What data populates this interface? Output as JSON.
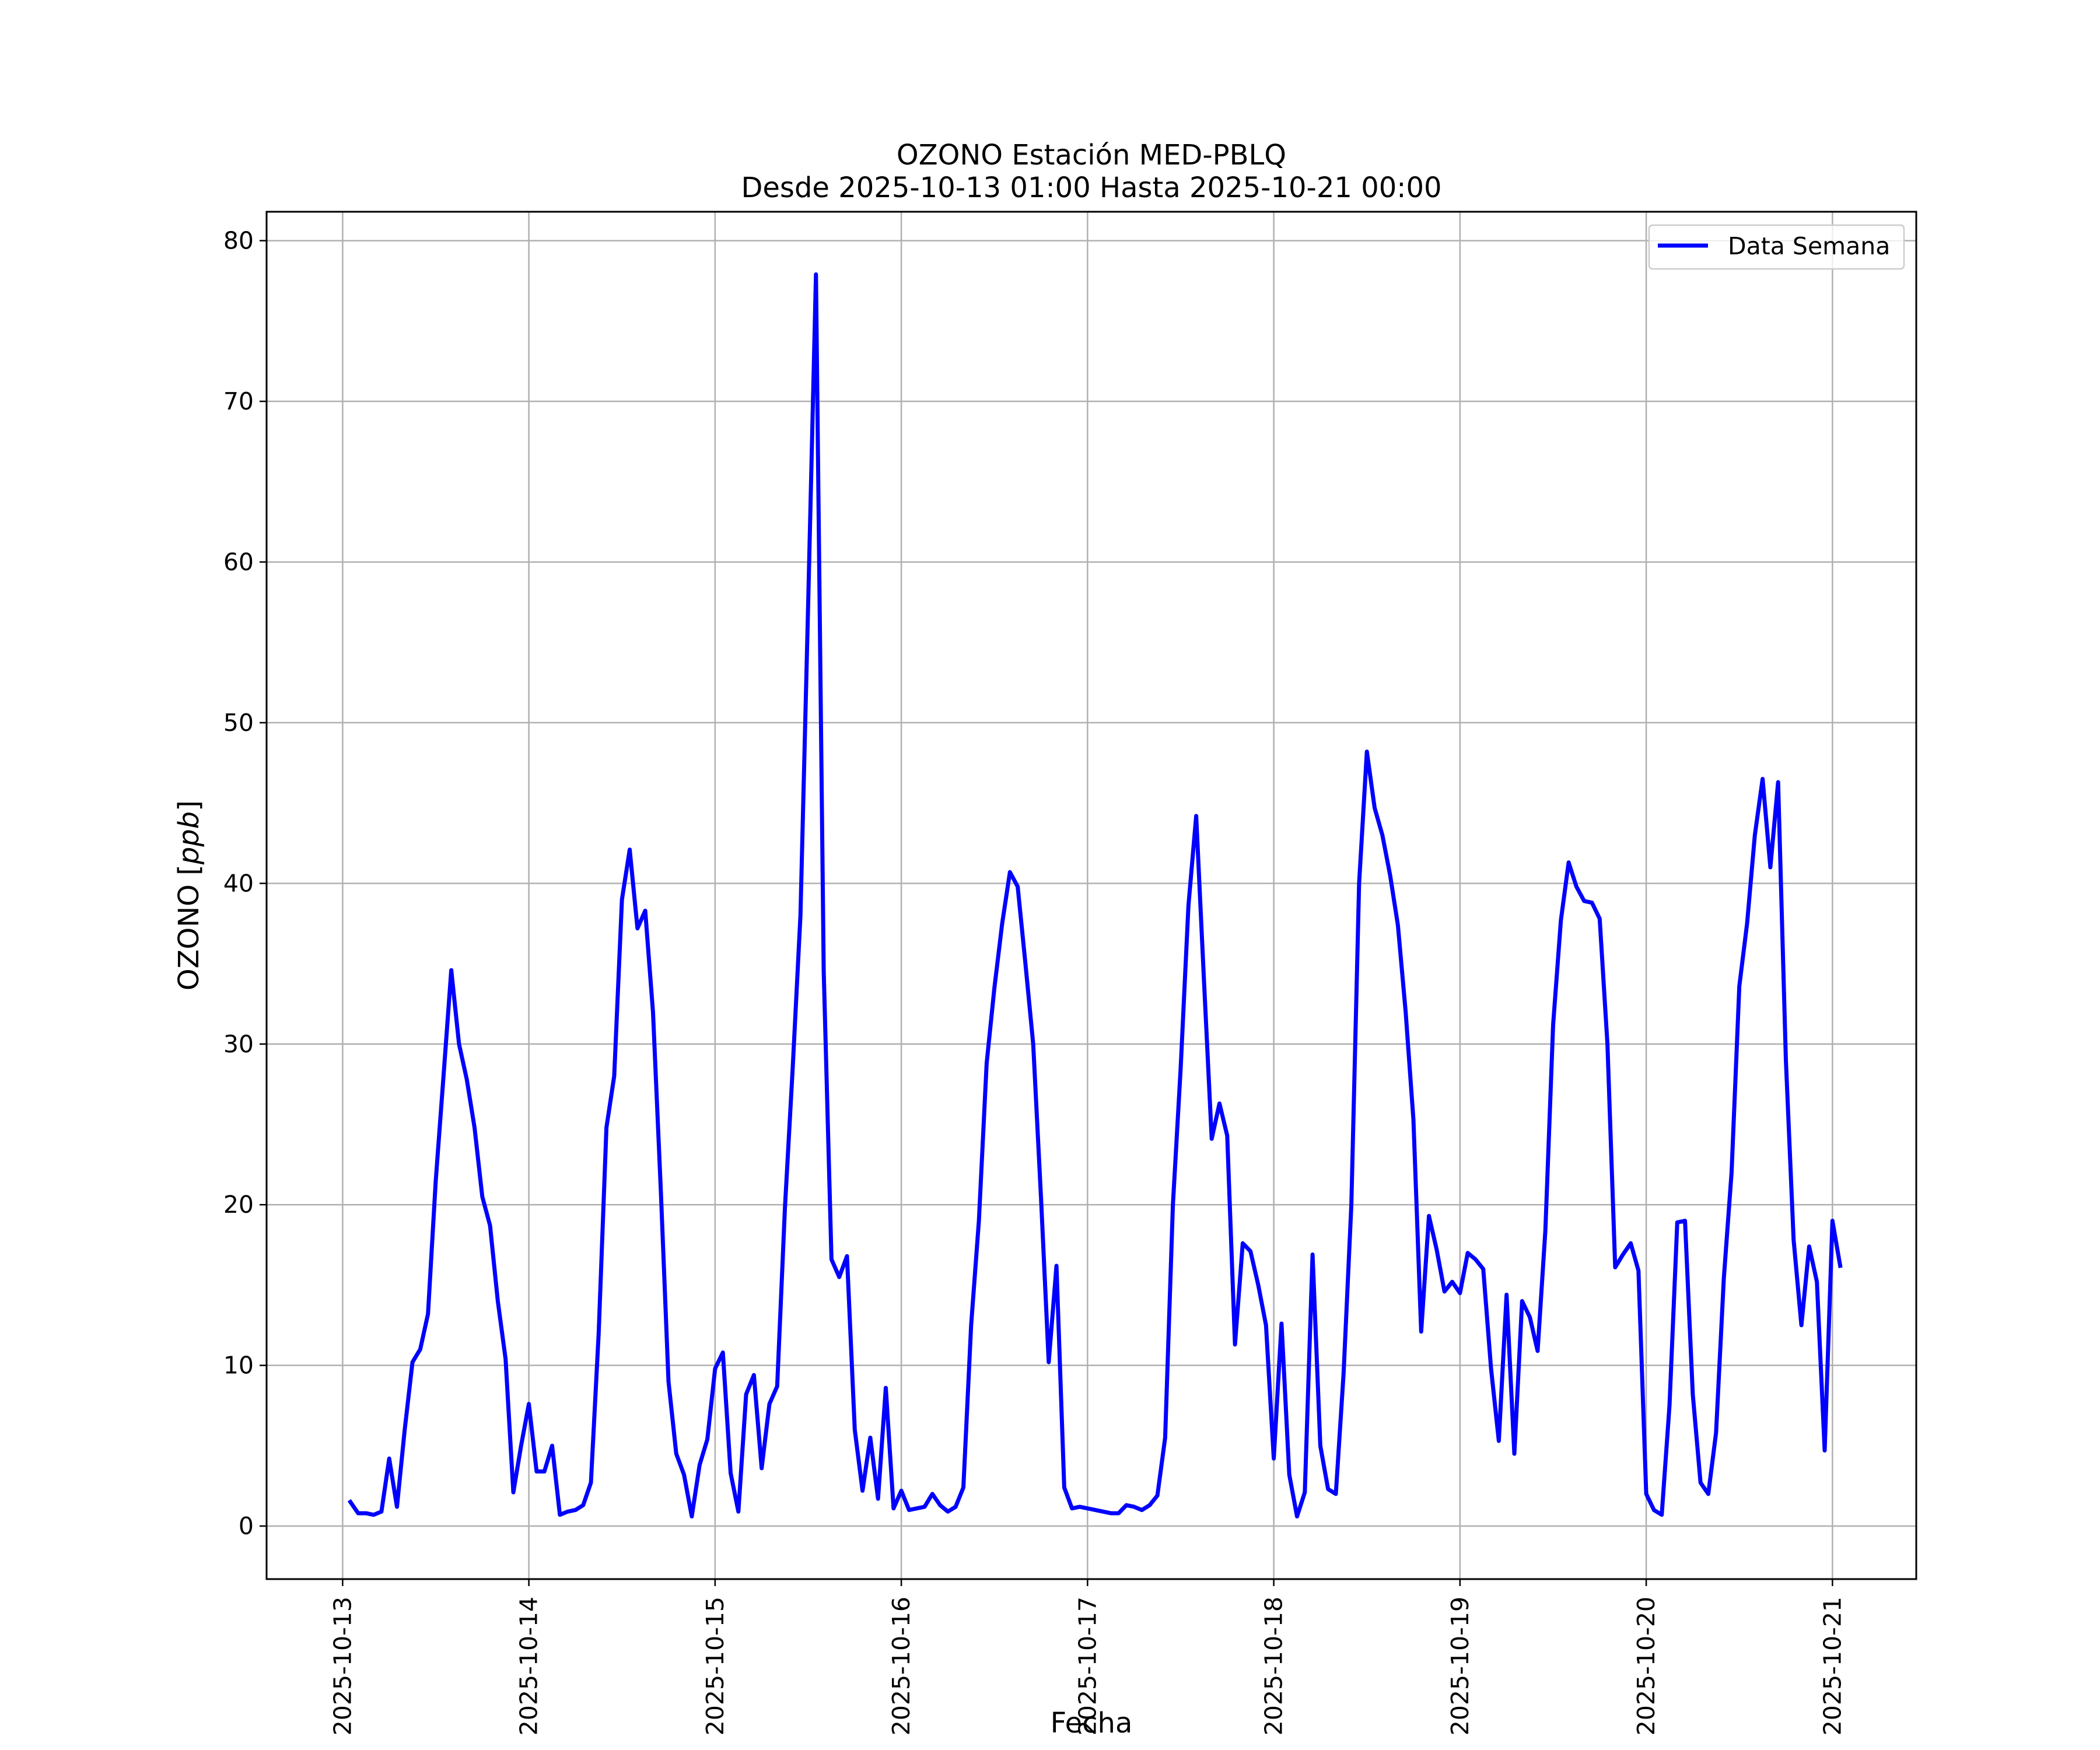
{
  "chart_data": {
    "type": "line",
    "title": "OZONO Estación MED-PBLQ",
    "subtitle": "Desde 2025-10-13 01:00 Hasta 2025-10-21 00:00",
    "xlabel": "Fecha",
    "ylabel": "OZONO [ppb]",
    "ylabel_plain": "OZONO [",
    "ylabel_unit": "ppb",
    "ylabel_close": "]",
    "ylim": [
      -3.3,
      81.8
    ],
    "xlim": [
      "2025-10-12 14:12",
      "2025-10-21 10:48"
    ],
    "yticks": [
      0,
      10,
      20,
      30,
      40,
      50,
      60,
      70,
      80
    ],
    "xticks": [
      "2025-10-13",
      "2025-10-14",
      "2025-10-15",
      "2025-10-16",
      "2025-10-17",
      "2025-10-18",
      "2025-10-19",
      "2025-10-20",
      "2025-10-21"
    ],
    "grid": true,
    "legend": {
      "position": "top-right",
      "entries": [
        "Data Semana"
      ]
    },
    "series": [
      {
        "name": "Data Semana",
        "color": "#0000ff",
        "x_start": "2025-10-13 01:00",
        "x_step": "1 hour",
        "values": [
          1.5,
          0.8,
          0.8,
          0.7,
          0.9,
          4.2,
          1.2,
          6.0,
          10.2,
          11.0,
          13.2,
          21.5,
          28.0,
          34.6,
          30.0,
          27.8,
          24.8,
          20.5,
          18.7,
          14.0,
          10.4,
          2.1,
          5.0,
          7.6,
          3.4,
          3.4,
          5.0,
          0.7,
          0.9,
          1.0,
          1.3,
          2.7,
          12.0,
          24.8,
          28.0,
          39.0,
          42.1,
          37.2,
          38.3,
          32.0,
          21.0,
          9.0,
          4.5,
          3.2,
          0.6,
          3.8,
          5.4,
          9.8,
          10.8,
          3.3,
          0.9,
          8.2,
          9.4,
          3.6,
          7.6,
          8.7,
          19.8,
          28.5,
          38.0,
          57.5,
          77.9,
          34.5,
          16.6,
          15.5,
          16.8,
          6.0,
          2.2,
          5.5,
          1.7,
          8.6,
          1.1,
          2.2,
          1.0,
          1.1,
          1.2,
          2.0,
          1.3,
          0.9,
          1.2,
          2.4,
          12.5,
          19.0,
          28.8,
          33.5,
          37.5,
          40.7,
          39.8,
          35.0,
          30.0,
          20.5,
          10.2,
          16.2,
          2.4,
          1.1,
          1.2,
          1.1,
          1.0,
          0.9,
          0.8,
          0.8,
          1.3,
          1.2,
          1.0,
          1.3,
          1.9,
          5.5,
          20.0,
          28.5,
          38.6,
          44.2,
          34.0,
          24.1,
          26.3,
          24.3,
          11.3,
          17.6,
          17.1,
          15.0,
          12.5,
          4.2,
          12.6,
          3.2,
          0.6,
          2.1,
          16.9,
          5.0,
          2.3,
          2.0,
          9.5,
          20.0,
          40.0,
          48.2,
          44.7,
          43.0,
          40.5,
          37.4,
          32.0,
          25.3,
          12.1,
          19.3,
          17.2,
          14.6,
          15.2,
          14.5,
          17.0,
          16.6,
          16.0,
          9.8,
          5.3,
          14.4,
          4.5,
          14.0,
          13.0,
          10.9,
          18.4,
          31.2,
          37.7,
          41.3,
          39.8,
          38.9,
          38.8,
          37.8,
          30.0,
          16.1,
          16.9,
          17.6,
          15.9,
          2.0,
          1.0,
          0.7,
          7.5,
          18.9,
          19.0,
          8.2,
          2.7,
          2.0,
          5.8,
          15.4,
          22.0,
          33.6,
          37.5,
          43.0,
          46.5,
          41.0,
          46.3,
          29.0,
          17.8,
          12.5,
          17.4,
          15.2,
          4.7,
          19.0,
          16.2
        ]
      }
    ]
  }
}
